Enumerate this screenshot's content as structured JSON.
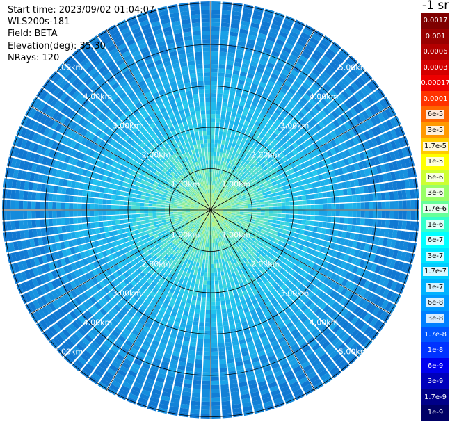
{
  "info": {
    "start_time": "Start time: 2023/09/02 01:04:07",
    "instrument": "WLS200s-181",
    "field": "Field: BETA",
    "elevation": "Elevation(deg): 35.30",
    "nrays": "NRays: 120"
  },
  "colorbar": {
    "title": "-1 sr",
    "entries": [
      {
        "label": "0.0017",
        "color": "#7f0000",
        "text_color": "#ffffff"
      },
      {
        "label": "0.001",
        "color": "#990000",
        "text_color": "#ffffff"
      },
      {
        "label": "0.0006",
        "color": "#b30000",
        "text_color": "#ffffff"
      },
      {
        "label": "0.0003",
        "color": "#d40000",
        "text_color": "#ffffff"
      },
      {
        "label": "0.00017",
        "color": "#ee0000",
        "text_color": "#ffffff"
      },
      {
        "label": "0.0001",
        "color": "#ff3300",
        "text_color": "#ffffff"
      },
      {
        "label": "6e-5",
        "color": "#ff6600",
        "text_color": "#000000"
      },
      {
        "label": "3e-5",
        "color": "#ff9900",
        "text_color": "#000000"
      },
      {
        "label": "1.7e-5",
        "color": "#ffcc00",
        "text_color": "#000000"
      },
      {
        "label": "1e-5",
        "color": "#ffff00",
        "text_color": "#000000"
      },
      {
        "label": "6e-6",
        "color": "#ccff33",
        "text_color": "#000000"
      },
      {
        "label": "3e-6",
        "color": "#99ff66",
        "text_color": "#000000"
      },
      {
        "label": "1.7e-6",
        "color": "#66ff99",
        "text_color": "#000000"
      },
      {
        "label": "1e-6",
        "color": "#33ffcc",
        "text_color": "#000000"
      },
      {
        "label": "6e-7",
        "color": "#00ffff",
        "text_color": "#000000"
      },
      {
        "label": "3e-7",
        "color": "#00e5ff",
        "text_color": "#000000"
      },
      {
        "label": "1.7e-7",
        "color": "#00ccff",
        "text_color": "#000000"
      },
      {
        "label": "1e-7",
        "color": "#00b2ff",
        "text_color": "#000000"
      },
      {
        "label": "6e-8",
        "color": "#0099ff",
        "text_color": "#000000"
      },
      {
        "label": "3e-8",
        "color": "#007fff",
        "text_color": "#000000"
      },
      {
        "label": "1.7e-8",
        "color": "#0055ff",
        "text_color": "#ffffff"
      },
      {
        "label": "1e-8",
        "color": "#0033ff",
        "text_color": "#ffffff"
      },
      {
        "label": "6e-9",
        "color": "#0000ee",
        "text_color": "#ffffff"
      },
      {
        "label": "3e-9",
        "color": "#0000bb",
        "text_color": "#ffffff"
      },
      {
        "label": "1.7e-9",
        "color": "#000088",
        "text_color": "#ffffff"
      },
      {
        "label": "1e-9",
        "color": "#000066",
        "text_color": "#ffffff"
      }
    ]
  },
  "ring_labels": [
    "1.00km",
    "2.00km",
    "3.00km",
    "4.00km",
    "5.00km"
  ],
  "colors": {
    "far": "#1aa3e8",
    "mid": "#22c8f0",
    "near": "#6ae8c0",
    "core": "#b8f060",
    "ray_gap": "#ffffff",
    "grid": "#000000"
  }
}
